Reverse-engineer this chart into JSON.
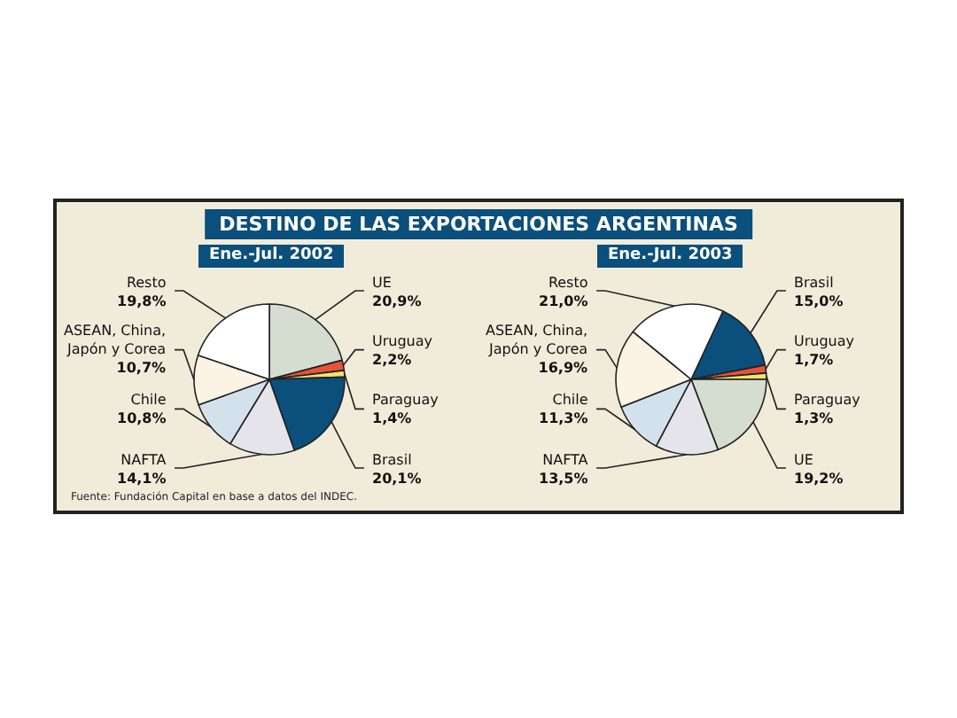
{
  "chart_data": [
    {
      "type": "pie",
      "title": "DESTINO DE LAS EXPORTACIONES ARGENTINAS",
      "subtitle": "Ene.-Jul. 2002",
      "categories": [
        "UE",
        "Uruguay",
        "Paraguay",
        "Brasil",
        "NAFTA",
        "Chile",
        "ASEAN, China, Japón y Corea",
        "Resto"
      ],
      "values": [
        20.9,
        2.2,
        1.4,
        20.1,
        14.1,
        10.8,
        10.7,
        19.8
      ],
      "value_labels": [
        "20,9%",
        "2,2%",
        "1,4%",
        "20,1%",
        "14,1%",
        "10,8%",
        "10,7%",
        "19,8%"
      ],
      "colors": [
        "#d5ddd0",
        "#e8533a",
        "#f2e36a",
        "#0b4f7c",
        "#e4e4ea",
        "#d3e1ec",
        "#fbf3e4",
        "#ffffff"
      ],
      "annotations": [
        "Fuente: Fundación Capital en base a datos del INDEC."
      ]
    },
    {
      "type": "pie",
      "subtitle": "Ene.-Jul. 2003",
      "categories": [
        "Brasil",
        "Uruguay",
        "Paraguay",
        "UE",
        "NAFTA",
        "Chile",
        "ASEAN, China, Japón y Corea",
        "Resto"
      ],
      "values": [
        15.0,
        1.7,
        1.3,
        19.2,
        13.5,
        11.3,
        16.9,
        21.0
      ],
      "value_labels": [
        "15,0%",
        "1,7%",
        "1,3%",
        "19,2%",
        "13,5%",
        "11,3%",
        "16,9%",
        "21,0%"
      ],
      "colors": [
        "#0b4f7c",
        "#e8533a",
        "#f2e36a",
        "#d5ddd0",
        "#e4e4ea",
        "#d3e1ec",
        "#fbf3e4",
        "#ffffff"
      ]
    }
  ]
}
